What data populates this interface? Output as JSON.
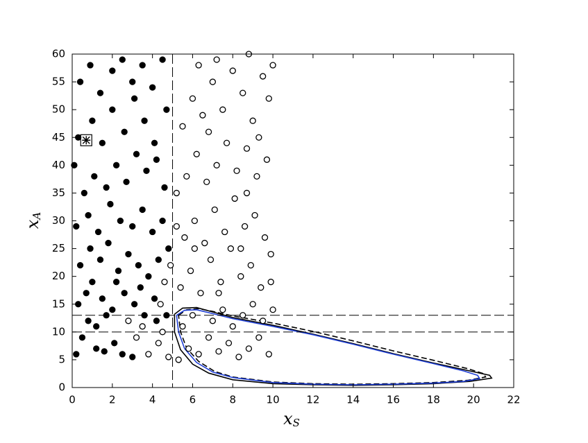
{
  "chart_data": {
    "type": "scatter",
    "xlabel": "x",
    "xlabel_sub": "S",
    "ylabel": "x",
    "ylabel_sub": "A",
    "xlim": [
      0,
      22
    ],
    "xticks": [
      0,
      2,
      4,
      6,
      8,
      10,
      12,
      14,
      16,
      18,
      20,
      22
    ],
    "ylim": [
      0,
      60
    ],
    "yticks": [
      0,
      5,
      10,
      15,
      20,
      25,
      30,
      35,
      40,
      45,
      50,
      55,
      60
    ],
    "vlines": [
      5
    ],
    "hlines": [
      10,
      13
    ],
    "series": [
      {
        "marker": "filled",
        "color": "#000000",
        "x": [
          0.2,
          0.5,
          0.8,
          1.2,
          1.6,
          2.1,
          2.5,
          3,
          0.3,
          0.7,
          1,
          1.5,
          2,
          2.6,
          3.1,
          3.6,
          4.2,
          4.7,
          0.4,
          0.9,
          1.4,
          1.8,
          2.3,
          2.8,
          3.3,
          3.8,
          4.3,
          4.8,
          0.2,
          0.8,
          1.3,
          1.9,
          2.4,
          3,
          3.5,
          4,
          4.5,
          0.6,
          1.1,
          1.7,
          2.2,
          2.7,
          3.2,
          3.7,
          4.2,
          4.6,
          0.3,
          1,
          1.5,
          2,
          2.6,
          3.1,
          3.6,
          4.1,
          4.7,
          0.4,
          0.9,
          1.4,
          2,
          2.5,
          3,
          3.5,
          4,
          4.5,
          1.2,
          2.2,
          3.4,
          4.1,
          1.7,
          0.1
        ],
        "y": [
          6,
          9,
          12,
          7,
          6.5,
          8,
          6,
          5.5,
          15,
          17,
          19,
          16,
          14,
          17,
          15,
          13,
          12,
          13,
          22,
          25,
          23,
          26,
          21,
          24,
          22,
          20,
          23,
          25,
          29,
          31,
          28,
          33,
          30,
          29,
          32,
          28,
          30,
          35,
          38,
          36,
          40,
          37,
          42,
          39,
          41,
          36,
          45,
          48,
          44,
          50,
          46,
          52,
          48,
          44,
          50,
          55,
          58,
          53,
          57,
          59,
          55,
          58,
          54,
          59,
          11,
          19,
          18,
          16,
          13,
          40
        ]
      },
      {
        "marker": "open",
        "color": "#000000",
        "x": [
          2.8,
          3.2,
          3.8,
          4.3,
          4.8,
          3.5,
          4.5,
          5.3,
          5.8,
          6.3,
          6.8,
          7.3,
          7.8,
          8.3,
          8.8,
          9.3,
          9.8,
          5.5,
          6,
          7,
          7.5,
          8,
          8.5,
          9,
          9.5,
          10,
          5.4,
          5.9,
          6.4,
          6.9,
          7.4,
          7.9,
          8.4,
          8.9,
          9.4,
          9.9,
          5.6,
          6.1,
          6.6,
          7.1,
          7.6,
          8.1,
          8.6,
          9.1,
          9.6,
          5.2,
          5.7,
          6.2,
          6.7,
          7.2,
          7.7,
          8.2,
          8.7,
          9.2,
          9.7,
          5.5,
          6,
          6.5,
          7,
          7.5,
          8,
          8.5,
          9,
          9.5,
          10,
          6.3,
          7.2,
          8.8,
          9.8,
          4.6,
          4.9,
          4.4,
          5.2,
          6.8,
          8.4,
          9.9,
          7.3,
          6.1,
          8.7,
          9.3
        ],
        "y": [
          12,
          9,
          6,
          8,
          5.5,
          11,
          10,
          5,
          7,
          6,
          9,
          6.5,
          8,
          5.5,
          7,
          9,
          6,
          11,
          13,
          12,
          14,
          11,
          13,
          15,
          12,
          14,
          18,
          21,
          17,
          23,
          19,
          25,
          20,
          22,
          18,
          24,
          27,
          30,
          26,
          32,
          28,
          34,
          29,
          31,
          27,
          35,
          38,
          42,
          37,
          40,
          44,
          39,
          43,
          38,
          41,
          47,
          52,
          49,
          55,
          50,
          57,
          53,
          48,
          56,
          58,
          58,
          59,
          60,
          52,
          19,
          22,
          15,
          29,
          46,
          25,
          19,
          17,
          25,
          35,
          45
        ]
      },
      {
        "marker": "boxed-star",
        "color": "#000000",
        "x": [
          0.7
        ],
        "y": [
          44.5
        ]
      }
    ],
    "curves": [
      {
        "style": "solid",
        "color": "#000000",
        "x": [
          5.1,
          5.5,
          6.2,
          7,
          8,
          10,
          12,
          14,
          16,
          18,
          19.8,
          20.8,
          20.9,
          19.8,
          18,
          16,
          14,
          12,
          10,
          8,
          6.8,
          6,
          5.4,
          5.1,
          5.1
        ],
        "y": [
          13.2,
          14.3,
          14.4,
          13.6,
          12.6,
          11.2,
          9.6,
          7.9,
          6.1,
          4.4,
          3,
          2.2,
          1.7,
          1.1,
          0.7,
          0.5,
          0.4,
          0.5,
          0.7,
          1.4,
          2.6,
          4.2,
          6.8,
          10,
          13.2
        ]
      },
      {
        "style": "dashed",
        "color": "#000000",
        "x": [
          5.3,
          5.7,
          6.3,
          7,
          8,
          10,
          12,
          14,
          16,
          18,
          19.7,
          20.5,
          20.6,
          19.7,
          18,
          16,
          14,
          12,
          10,
          8,
          7.1,
          6.3,
          5.7,
          5.4,
          5.3
        ],
        "y": [
          13,
          14,
          14.2,
          13.7,
          12.9,
          11.6,
          10.1,
          8.4,
          6.6,
          4.9,
          3.4,
          2.5,
          1.9,
          1.3,
          0.9,
          0.7,
          0.6,
          0.7,
          1,
          1.9,
          2.9,
          4.7,
          7.1,
          10,
          13
        ]
      },
      {
        "style": "solid",
        "color": "#1f3fd6",
        "x": [
          5.2,
          5.6,
          6.2,
          7,
          8,
          10,
          12,
          14,
          16,
          18,
          19.5,
          20.2,
          20.3,
          19.5,
          18,
          16,
          14,
          12,
          10,
          8,
          7,
          6.2,
          5.6,
          5.3,
          5.2
        ],
        "y": [
          13,
          13.9,
          14,
          13.3,
          12.4,
          11,
          9.5,
          7.8,
          6,
          4.3,
          3,
          2.2,
          1.6,
          1.1,
          0.8,
          0.6,
          0.5,
          0.6,
          0.9,
          1.8,
          2.8,
          4.5,
          7,
          10,
          13
        ]
      }
    ]
  }
}
